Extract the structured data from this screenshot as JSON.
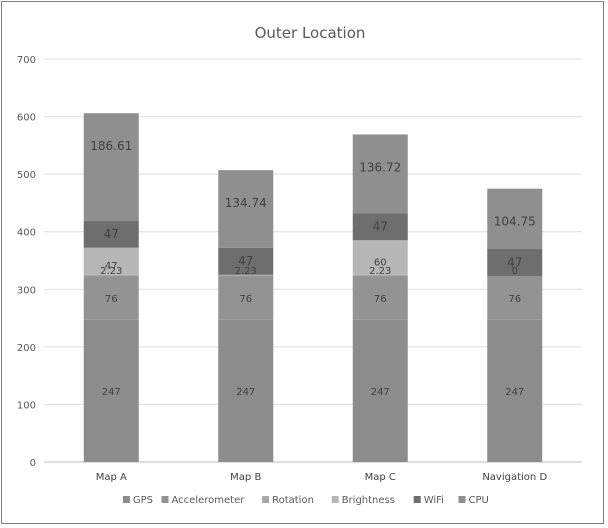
{
  "chart_data": {
    "type": "bar",
    "stacked": true,
    "title": "Outer Location",
    "categories": [
      "Map A",
      "Map B",
      "Map C",
      "Navigation D"
    ],
    "ylim": [
      0,
      700
    ],
    "yticks": [
      0,
      100,
      200,
      300,
      400,
      500,
      600,
      700
    ],
    "grid": true,
    "legend_position": "bottom",
    "series": [
      {
        "name": "GPS",
        "values": [
          247,
          247,
          247,
          247
        ],
        "color": "#8c8c8c",
        "labels": [
          "247",
          "247",
          "247",
          "247"
        ]
      },
      {
        "name": "Accelerometer",
        "values": [
          76,
          76,
          76,
          76
        ],
        "color": "#939393",
        "labels": [
          "76",
          "76",
          "76",
          "76"
        ]
      },
      {
        "name": "Rotation",
        "values": [
          2.23,
          2.23,
          2.23,
          0
        ],
        "color": "#a7a7a7",
        "labels": [
          "2.23",
          "2.23",
          "2.23",
          "0"
        ]
      },
      {
        "name": "Brightness",
        "values": [
          47,
          0,
          60,
          0
        ],
        "color": "#b6b6b6",
        "labels": [
          "47",
          "0",
          "60",
          "0"
        ]
      },
      {
        "name": "WiFi",
        "values": [
          47,
          47,
          47,
          47
        ],
        "color": "#6e6e6e",
        "labels": [
          "47",
          "47",
          "47",
          "47"
        ]
      },
      {
        "name": "CPU",
        "values": [
          186.61,
          134.74,
          136.72,
          104.75
        ],
        "color": "#8f8f8f",
        "labels": [
          "186.61",
          "134.74",
          "136.72",
          "104.75"
        ]
      }
    ]
  }
}
